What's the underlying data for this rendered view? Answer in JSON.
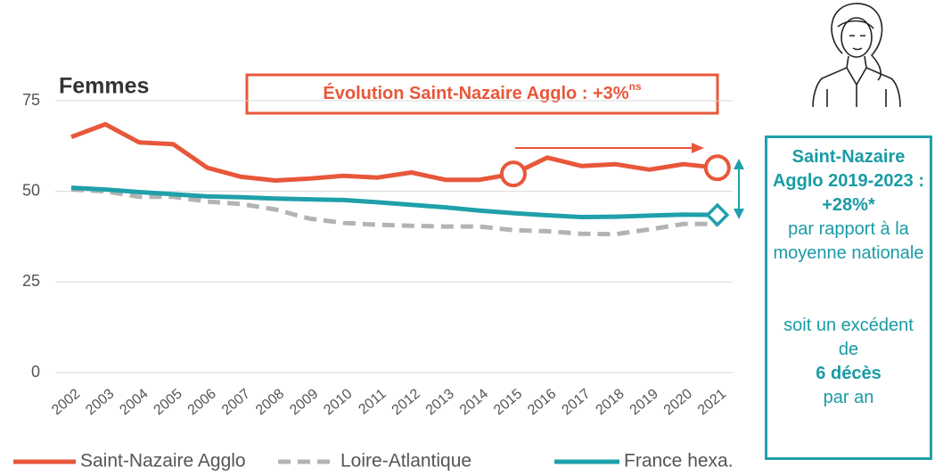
{
  "chart_data": {
    "type": "line",
    "title": "Femmes",
    "annotation": {
      "text": "Évolution Saint-Nazaire Agglo : +3%",
      "superscript": "ns"
    },
    "categories": [
      "2002",
      "2003",
      "2004",
      "2005",
      "2006",
      "2007",
      "2008",
      "2009",
      "2010",
      "2011",
      "2012",
      "2013",
      "2014",
      "2015",
      "2016",
      "2017",
      "2018",
      "2019",
      "2020",
      "2021"
    ],
    "series": [
      {
        "name": "Saint-Nazaire Agglo",
        "color": "#e8573a",
        "dash": false,
        "marker": "circle",
        "marker_at": [
          "2015",
          "2021"
        ],
        "values": [
          65,
          68.5,
          63.5,
          63,
          56.5,
          54,
          53,
          53.5,
          54.3,
          53.8,
          55.2,
          53.2,
          53.2,
          54.8,
          59.3,
          57,
          57.5,
          56,
          57.5,
          56.5
        ]
      },
      {
        "name": "Loire-Atlantique",
        "color": "#b3b3b3",
        "dash": true,
        "values": [
          50.5,
          50,
          48.5,
          48.5,
          47.2,
          46.5,
          45,
          42.5,
          41.3,
          40.8,
          40.5,
          40.3,
          40.3,
          39.3,
          39,
          38.3,
          38.2,
          39.5,
          41,
          41
        ]
      },
      {
        "name": "France hexa.",
        "color": "#1fa0aa",
        "dash": false,
        "marker": "diamond",
        "marker_at": [
          "2021"
        ],
        "values": [
          51,
          50.5,
          49.8,
          49.2,
          48.6,
          48.4,
          48,
          47.8,
          47.6,
          47,
          46.3,
          45.6,
          44.7,
          44,
          43.4,
          42.9,
          43,
          43.3,
          43.6,
          43.5
        ]
      }
    ],
    "ylim": [
      0,
      75
    ],
    "yticks": [
      0,
      25,
      50,
      75
    ],
    "grid": true,
    "legend": "bottom",
    "panel": {
      "heading": "Saint-Nazaire Agglo 2019-2023 : +28%*",
      "text": "par rapport à la moyenne nationale",
      "text2": "soit un excédent de",
      "highlight": "6 décès",
      "text3": "par an"
    }
  }
}
